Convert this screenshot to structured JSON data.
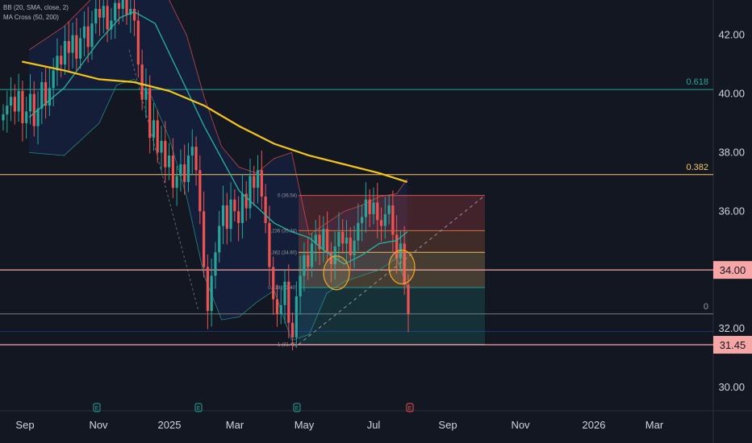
{
  "legend": {
    "bb": "BB (20, SMA, close, 2)",
    "ma": "MA Cross (50, 200)"
  },
  "colors": {
    "background": "#131722",
    "up": "#26a69a",
    "down": "#ef5350",
    "ma200": "#f5c518",
    "ma50": "#26b5a0",
    "bb_band": "#2962ff",
    "bb_upper": "#ef5350",
    "bb_lower": "#26a69a",
    "line_red": "#f7a6a6",
    "line_gold": "#f9c86b",
    "line_teal": "#26a69a"
  },
  "price_tags": [
    {
      "label": "34.00",
      "value": 34.0,
      "color": "#f7a6a6"
    },
    {
      "label": "31.45",
      "value": 31.45,
      "color": "#f7a6a6"
    }
  ],
  "fib_labels": [
    {
      "label": "0.618",
      "value": 40.15,
      "color": "#26a69a"
    },
    {
      "label": "0.382",
      "value": 37.25,
      "color": "#f9c86b"
    },
    {
      "label": "0",
      "value": 32.5,
      "color": "#9598a1"
    }
  ],
  "retracement_labels": [
    {
      "label": "0 (36.54)",
      "value": 36.54
    },
    {
      "label": "0.236 (35.34)",
      "value": 35.34
    },
    {
      "label": "0.382 (34.60)",
      "value": 34.6
    },
    {
      "label": "0.618 (33.40)",
      "value": 33.4
    },
    {
      "label": "1 (31.46)",
      "value": 31.46
    }
  ],
  "event_markers": [
    {
      "label": "E",
      "date_index": 1.0,
      "color": "#26a69a"
    },
    {
      "label": "E",
      "date_index": 3.6,
      "color": "#26a69a"
    },
    {
      "label": "E",
      "date_index": 6.5,
      "color": "#26a69a"
    },
    {
      "label": "E",
      "date_index": 9.3,
      "color": "#ef5350"
    }
  ],
  "chart_data": {
    "type": "candlestick",
    "y_axis": {
      "ticks": [
        30.0,
        32.0,
        34.0,
        36.0,
        38.0,
        40.0,
        42.0
      ],
      "tick_labels": [
        "30.00",
        "32.00",
        "34.00",
        "36.00",
        "38.00",
        "40.00",
        "42.00"
      ],
      "range": [
        29.2,
        43.2
      ]
    },
    "x_axis": {
      "ticks": [
        "Sep",
        "Nov",
        "2025",
        "Mar",
        "May",
        "Jul",
        "Sep",
        "Nov",
        "2026",
        "Mar"
      ],
      "tick_month_index": [
        0,
        2,
        4,
        6,
        8,
        10,
        12,
        14,
        16,
        18
      ],
      "range_months": [
        -0.2,
        19.5
      ]
    },
    "ma200": {
      "x": [
        -0.2,
        1,
        2,
        3,
        4,
        5,
        6,
        7,
        8,
        9,
        10,
        10.8
      ],
      "y": [
        41.1,
        40.8,
        40.5,
        40.4,
        40.1,
        39.6,
        38.9,
        38.3,
        37.9,
        37.6,
        37.3,
        37.0
      ]
    },
    "ma50": {
      "x": [
        0,
        1,
        2,
        2.6,
        3,
        3.6,
        4,
        5,
        6,
        7,
        7.5,
        8,
        8.5,
        9,
        9.5,
        10,
        10.5,
        10.8
      ],
      "y": [
        39.2,
        40.2,
        41.8,
        42.6,
        42.8,
        42.4,
        41.4,
        38.9,
        36.7,
        35.6,
        35.3,
        35.1,
        34.6,
        34.2,
        34.5,
        34.9,
        35.0,
        35.3
      ]
    },
    "bb_upper": {
      "x": [
        0,
        1,
        2,
        2.5,
        3,
        3.5,
        4,
        4.5,
        5,
        5.5,
        6,
        6.5,
        7,
        7.5,
        8,
        8.5,
        9,
        9.5,
        10,
        10.5,
        10.8
      ],
      "y": [
        41.5,
        42.3,
        43.5,
        43.9,
        44.1,
        43.9,
        43.2,
        42.0,
        39.9,
        38.2,
        37.5,
        37.3,
        37.8,
        38.0,
        35.2,
        35.6,
        36.0,
        36.2,
        36.5,
        36.6,
        37.1
      ]
    },
    "bb_lower": {
      "x": [
        0,
        1,
        2,
        2.5,
        3,
        3.5,
        4,
        4.5,
        5,
        5.5,
        6,
        6.5,
        7,
        7.5,
        8,
        8.5,
        9,
        9.5,
        10,
        10.5,
        10.8
      ],
      "y": [
        38.0,
        37.9,
        39.0,
        40.3,
        40.5,
        39.9,
        38.5,
        36.5,
        33.8,
        32.3,
        32.4,
        32.9,
        33.3,
        31.6,
        31.8,
        33.2,
        33.6,
        33.8,
        34.0,
        34.4,
        33.4
      ]
    },
    "candles_close": [
      39.3,
      39.6,
      39.9,
      39.4,
      40.1,
      39.0,
      39.4,
      40.0,
      38.9,
      39.5,
      40.4,
      39.6,
      40.2,
      40.8,
      41.3,
      41.0,
      41.8,
      41.4,
      42.0,
      41.2,
      41.9,
      42.3,
      41.6,
      42.4,
      42.9,
      42.6,
      43.0,
      42.2,
      42.5,
      43.1,
      42.9,
      43.2,
      42.7,
      42.9,
      42.5,
      41.0,
      39.8,
      40.2,
      38.5,
      39.1,
      38.0,
      38.4,
      37.5,
      37.9,
      36.8,
      37.2,
      37.6,
      37.0,
      37.9,
      38.2,
      37.4,
      36.0,
      34.1,
      32.6,
      33.8,
      34.6,
      35.5,
      36.2,
      35.4,
      36.4,
      36.0,
      35.6,
      36.6,
      36.1,
      37.2,
      36.8,
      37.4,
      36.5,
      35.6,
      34.1,
      33.0,
      32.5,
      32.8,
      33.6,
      32.2,
      31.7,
      33.1,
      33.8,
      34.5,
      34.1,
      34.9,
      35.2,
      34.7,
      35.4,
      34.6,
      34.2,
      34.8,
      35.3,
      34.9,
      35.1,
      34.5,
      35.0,
      35.6,
      35.8,
      36.4,
      35.9,
      36.3,
      35.7,
      35.5,
      35.9,
      36.2,
      35.2,
      34.4,
      34.9,
      33.5,
      32.5
    ]
  }
}
